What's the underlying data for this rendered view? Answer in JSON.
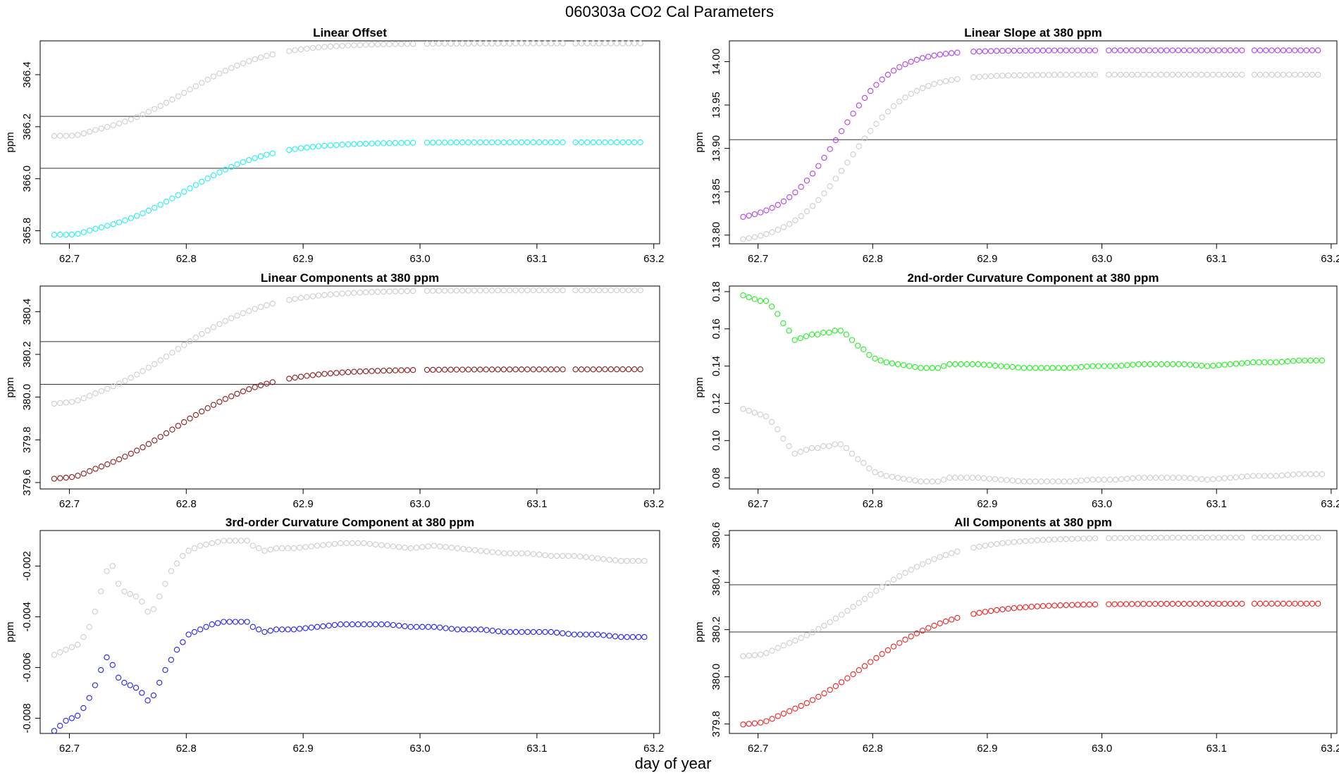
{
  "figure": {
    "title": "060303a    CO2 Cal Parameters",
    "xlabel": "day of year"
  },
  "colors": {
    "gray": "#cccccc",
    "cyan": "#22eeee",
    "purple": "#b040e8",
    "darkred": "#8b1a1a",
    "green": "#22ee22",
    "blue": "#2222ee",
    "red": "#ee2222",
    "axis": "#000000",
    "refline": "#333333"
  },
  "chart_data": [
    {
      "id": "p1",
      "type": "scatter",
      "title": "Linear Offset",
      "ylabel": "ppm",
      "xlim": [
        62.675,
        63.205
      ],
      "ylim": [
        365.75,
        366.53
      ],
      "xticks": [
        62.7,
        62.8,
        62.9,
        63.0,
        63.1,
        63.2
      ],
      "xtick_labels": [
        "62.7",
        "62.8",
        "62.9",
        "63.0",
        "63.1",
        "63.2"
      ],
      "yticks": [
        365.8,
        366.0,
        366.2,
        366.4
      ],
      "ytick_labels": [
        "365.8",
        "366.0",
        "366.2",
        "366.4"
      ],
      "hlines": [
        366.04,
        366.24
      ],
      "series": [
        {
          "name": "gray",
          "color": "gray",
          "shape": "sigmoid",
          "start": 366.15,
          "end": 366.52,
          "dip": -0.008,
          "mid": 62.8,
          "width": 0.036
        },
        {
          "name": "cyan",
          "color": "cyan",
          "shape": "sigmoid",
          "start": 365.77,
          "end": 366.14,
          "dip": -0.008,
          "mid": 62.8,
          "width": 0.036
        }
      ]
    },
    {
      "id": "p2",
      "type": "scatter",
      "title": "Linear Slope at 380 ppm",
      "ylabel": "ppm",
      "xlim": [
        62.675,
        63.205
      ],
      "ylim": [
        13.79,
        14.024
      ],
      "xticks": [
        62.7,
        62.8,
        62.9,
        63.0,
        63.1,
        63.2
      ],
      "xtick_labels": [
        "62.7",
        "62.8",
        "62.9",
        "63.0",
        "63.1",
        "63.2"
      ],
      "yticks": [
        13.8,
        13.85,
        13.9,
        13.95,
        14.0
      ],
      "ytick_labels": [
        "13.80",
        "13.85",
        "13.90",
        "13.95",
        "14.00"
      ],
      "hlines": [
        13.91
      ],
      "series": [
        {
          "name": "gray",
          "color": "gray",
          "shape": "sigmoid",
          "start": 13.79,
          "end": 13.985,
          "dip": 0,
          "mid": 62.78,
          "width": 0.026
        },
        {
          "name": "purple",
          "color": "purple",
          "shape": "sigmoid",
          "start": 13.815,
          "end": 14.013,
          "dip": 0,
          "mid": 62.77,
          "width": 0.024
        }
      ]
    },
    {
      "id": "p3",
      "type": "scatter",
      "title": "Linear Components at 380 ppm",
      "ylabel": "ppm",
      "xlim": [
        62.675,
        63.205
      ],
      "ylim": [
        379.57,
        380.52
      ],
      "xticks": [
        62.7,
        62.8,
        62.9,
        63.0,
        63.1,
        63.2
      ],
      "xtick_labels": [
        "62.7",
        "62.8",
        "62.9",
        "63.0",
        "63.1",
        "63.2"
      ],
      "yticks": [
        379.6,
        379.8,
        380.0,
        380.2,
        380.4
      ],
      "ytick_labels": [
        "379.6",
        "379.8",
        "380.0",
        "380.2",
        "380.4"
      ],
      "hlines": [
        380.06,
        380.26
      ],
      "series": [
        {
          "name": "gray",
          "color": "gray",
          "shape": "sigmoid",
          "start": 379.93,
          "end": 380.5,
          "dip": -0.01,
          "mid": 62.79,
          "width": 0.04
        },
        {
          "name": "darkred",
          "color": "darkred",
          "shape": "sigmoid",
          "start": 379.58,
          "end": 380.13,
          "dip": -0.01,
          "mid": 62.79,
          "width": 0.04
        }
      ]
    },
    {
      "id": "p4",
      "type": "scatter",
      "title": "2nd-order Curvature Component at 380 ppm",
      "ylabel": "ppm",
      "xlim": [
        62.675,
        63.205
      ],
      "ylim": [
        0.074,
        0.183
      ],
      "xticks": [
        62.7,
        62.8,
        62.9,
        63.0,
        63.1,
        63.2
      ],
      "xtick_labels": [
        "62.7",
        "62.8",
        "62.9",
        "63.0",
        "63.1",
        "63.2"
      ],
      "yticks": [
        0.08,
        0.1,
        0.12,
        0.14,
        0.16,
        0.18
      ],
      "ytick_labels": [
        "0.08",
        "0.10",
        "0.12",
        "0.14",
        "0.16",
        "0.18"
      ],
      "hlines": [],
      "series": [
        {
          "name": "green",
          "color": "green",
          "shape": "points",
          "x": [
            62.687,
            62.692,
            62.697,
            62.702,
            62.707,
            62.712,
            62.717,
            62.722,
            62.727,
            62.732,
            62.737,
            62.742,
            62.747,
            62.752,
            62.757,
            62.762,
            62.767,
            62.772,
            62.777,
            62.782,
            62.787,
            62.792,
            62.797,
            62.802,
            62.812,
            62.822,
            62.832,
            62.842,
            62.852,
            62.857,
            62.862,
            62.867,
            62.877,
            62.892,
            62.912,
            62.932,
            62.952,
            62.972,
            62.992,
            63.012,
            63.032,
            63.052,
            63.072,
            63.092,
            63.112,
            63.132,
            63.152,
            63.172,
            63.192
          ],
          "y": [
            0.178,
            0.177,
            0.176,
            0.175,
            0.175,
            0.172,
            0.168,
            0.163,
            0.159,
            0.154,
            0.155,
            0.156,
            0.157,
            0.157,
            0.158,
            0.158,
            0.159,
            0.159,
            0.157,
            0.154,
            0.151,
            0.149,
            0.146,
            0.144,
            0.142,
            0.141,
            0.14,
            0.139,
            0.139,
            0.139,
            0.14,
            0.141,
            0.141,
            0.141,
            0.14,
            0.139,
            0.139,
            0.139,
            0.14,
            0.14,
            0.141,
            0.141,
            0.141,
            0.14,
            0.141,
            0.142,
            0.142,
            0.143,
            0.143
          ]
        },
        {
          "name": "gray",
          "color": "gray",
          "shape": "points",
          "x": [
            62.687,
            62.692,
            62.697,
            62.702,
            62.707,
            62.712,
            62.717,
            62.722,
            62.727,
            62.732,
            62.737,
            62.742,
            62.747,
            62.752,
            62.757,
            62.762,
            62.767,
            62.772,
            62.777,
            62.782,
            62.787,
            62.792,
            62.797,
            62.802,
            62.812,
            62.822,
            62.832,
            62.842,
            62.852,
            62.857,
            62.862,
            62.867,
            62.877,
            62.892,
            62.912,
            62.932,
            62.952,
            62.972,
            62.992,
            63.012,
            63.032,
            63.052,
            63.072,
            63.092,
            63.112,
            63.132,
            63.152,
            63.172,
            63.192
          ],
          "y": [
            0.117,
            0.116,
            0.115,
            0.114,
            0.113,
            0.11,
            0.106,
            0.101,
            0.097,
            0.093,
            0.094,
            0.095,
            0.096,
            0.096,
            0.097,
            0.097,
            0.098,
            0.098,
            0.096,
            0.093,
            0.09,
            0.088,
            0.085,
            0.083,
            0.081,
            0.08,
            0.079,
            0.078,
            0.078,
            0.078,
            0.079,
            0.08,
            0.08,
            0.08,
            0.079,
            0.078,
            0.078,
            0.078,
            0.079,
            0.079,
            0.08,
            0.08,
            0.08,
            0.079,
            0.08,
            0.081,
            0.081,
            0.082,
            0.082
          ]
        }
      ]
    },
    {
      "id": "p5",
      "type": "scatter",
      "title": "3rd-order Curvature Component at 380 ppm",
      "ylabel": "ppm",
      "xlim": [
        62.675,
        63.205
      ],
      "ylim": [
        -0.0086,
        -0.0006
      ],
      "xticks": [
        62.7,
        62.8,
        62.9,
        63.0,
        63.1,
        63.2
      ],
      "xtick_labels": [
        "62.7",
        "62.8",
        "62.9",
        "63.0",
        "63.1",
        "63.2"
      ],
      "yticks": [
        -0.008,
        -0.006,
        -0.004,
        -0.002
      ],
      "ytick_labels": [
        "-0.008",
        "-0.006",
        "-0.004",
        "-0.002"
      ],
      "hlines": [],
      "series": [
        {
          "name": "gray",
          "color": "gray",
          "shape": "points",
          "x": [
            62.687,
            62.692,
            62.697,
            62.702,
            62.707,
            62.712,
            62.717,
            62.722,
            62.727,
            62.732,
            62.737,
            62.742,
            62.747,
            62.752,
            62.757,
            62.762,
            62.767,
            62.772,
            62.777,
            62.782,
            62.787,
            62.792,
            62.797,
            62.802,
            62.812,
            62.822,
            62.832,
            62.842,
            62.852,
            62.857,
            62.862,
            62.867,
            62.877,
            62.892,
            62.912,
            62.932,
            62.952,
            62.972,
            62.992,
            63.012,
            63.032,
            63.052,
            63.072,
            63.092,
            63.112,
            63.132,
            63.152,
            63.172,
            63.192
          ],
          "y": [
            -0.0055,
            -0.0054,
            -0.0053,
            -0.0052,
            -0.0051,
            -0.0048,
            -0.0044,
            -0.0038,
            -0.003,
            -0.0022,
            -0.002,
            -0.0027,
            -0.003,
            -0.0031,
            -0.0032,
            -0.0034,
            -0.0038,
            -0.0037,
            -0.0032,
            -0.0027,
            -0.0022,
            -0.0019,
            -0.0016,
            -0.0014,
            -0.0012,
            -0.0011,
            -0.001,
            -0.001,
            -0.001,
            -0.0012,
            -0.0013,
            -0.0014,
            -0.0013,
            -0.0013,
            -0.0012,
            -0.0011,
            -0.0011,
            -0.0012,
            -0.0013,
            -0.0012,
            -0.0013,
            -0.0014,
            -0.0015,
            -0.0015,
            -0.0016,
            -0.0016,
            -0.0017,
            -0.0018,
            -0.0018
          ]
        },
        {
          "name": "blue",
          "color": "blue",
          "shape": "points",
          "x": [
            62.687,
            62.692,
            62.697,
            62.702,
            62.707,
            62.712,
            62.717,
            62.722,
            62.727,
            62.732,
            62.737,
            62.742,
            62.747,
            62.752,
            62.757,
            62.762,
            62.767,
            62.772,
            62.777,
            62.782,
            62.787,
            62.792,
            62.797,
            62.802,
            62.812,
            62.822,
            62.832,
            62.842,
            62.852,
            62.857,
            62.862,
            62.867,
            62.877,
            62.892,
            62.912,
            62.932,
            62.952,
            62.972,
            62.992,
            63.012,
            63.032,
            63.052,
            63.072,
            63.092,
            63.112,
            63.132,
            63.152,
            63.172,
            63.192
          ],
          "y": [
            -0.0085,
            -0.0083,
            -0.0081,
            -0.008,
            -0.0079,
            -0.0076,
            -0.0072,
            -0.0067,
            -0.0061,
            -0.0056,
            -0.0059,
            -0.0064,
            -0.0066,
            -0.0067,
            -0.0068,
            -0.007,
            -0.0073,
            -0.0071,
            -0.0066,
            -0.0061,
            -0.0057,
            -0.0053,
            -0.005,
            -0.0047,
            -0.0045,
            -0.0043,
            -0.0042,
            -0.0042,
            -0.0042,
            -0.0044,
            -0.0045,
            -0.0046,
            -0.0045,
            -0.0045,
            -0.0044,
            -0.0043,
            -0.0043,
            -0.0043,
            -0.0044,
            -0.0044,
            -0.0045,
            -0.0045,
            -0.0046,
            -0.0046,
            -0.0046,
            -0.0047,
            -0.0047,
            -0.0048,
            -0.0048
          ]
        }
      ]
    },
    {
      "id": "p6",
      "type": "scatter",
      "title": "All Components at 380 ppm",
      "ylabel": "ppm",
      "xlim": [
        62.675,
        63.205
      ],
      "ylim": [
        379.76,
        380.62
      ],
      "xticks": [
        62.7,
        62.8,
        62.9,
        63.0,
        63.1,
        63.2
      ],
      "xtick_labels": [
        "62.7",
        "62.8",
        "62.9",
        "63.0",
        "63.1",
        "63.2"
      ],
      "yticks": [
        379.8,
        380.0,
        380.2,
        380.4,
        380.6
      ],
      "ytick_labels": [
        "379.8",
        "380.0",
        "380.2",
        "380.4",
        "380.6"
      ],
      "hlines": [
        380.19,
        380.39
      ],
      "series": [
        {
          "name": "gray",
          "color": "gray",
          "shape": "sigmoid",
          "start": 380.05,
          "end": 380.59,
          "dip": -0.01,
          "mid": 62.79,
          "width": 0.04
        },
        {
          "name": "red",
          "color": "red",
          "shape": "sigmoid",
          "start": 379.76,
          "end": 380.31,
          "dip": -0.01,
          "mid": 62.79,
          "width": 0.04
        }
      ]
    }
  ]
}
